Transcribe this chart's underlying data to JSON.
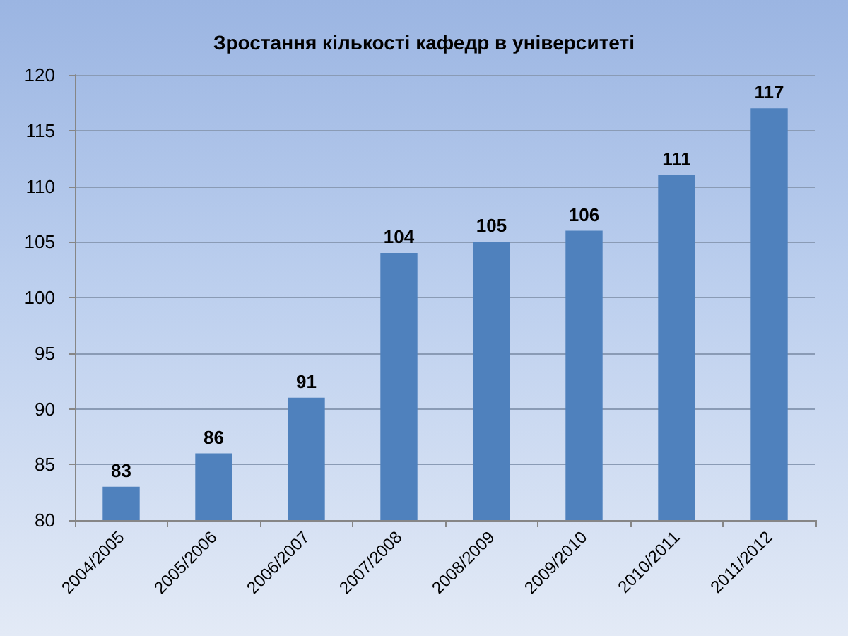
{
  "chart_data": {
    "type": "bar",
    "title": "Зростання кількості кафедр в університеті",
    "categories": [
      "2004/2005",
      "2005/2006",
      "2006/2007",
      "2007/2008",
      "2008/2009",
      "2009/2010",
      "2010/2011",
      "2011/2012"
    ],
    "values": [
      83,
      86,
      91,
      104,
      105,
      106,
      111,
      117
    ],
    "color": "#4f81bd",
    "ylim": [
      80,
      120
    ],
    "yticks": [
      80,
      85,
      90,
      95,
      100,
      105,
      110,
      115,
      120
    ],
    "grid": "y",
    "data_labels": true
  }
}
